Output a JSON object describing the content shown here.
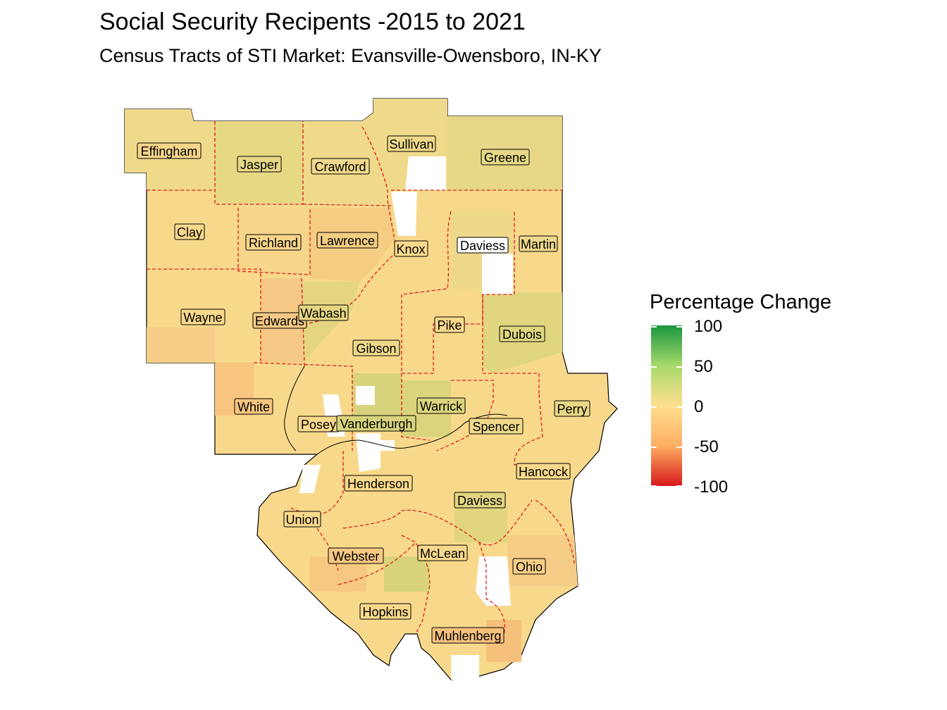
{
  "title": "Social Security Recipents -2015 to 2021",
  "subtitle": "Census Tracts of STI Market: Evansville-Owensboro, IN-KY",
  "legend": {
    "title": "Percentage Change",
    "ticks": [
      "100",
      "50",
      "0",
      "-50",
      "-100"
    ],
    "colors": {
      "high": "#1a9641",
      "mid": "#ffdf8f",
      "low": "#d7191c"
    }
  },
  "counties": [
    {
      "name": "Effingham",
      "change": 12
    },
    {
      "name": "Jasper",
      "change": 18
    },
    {
      "name": "Crawford",
      "change": 8
    },
    {
      "name": "Sullivan",
      "change": 10
    },
    {
      "name": "Greene",
      "change": 15
    },
    {
      "name": "Clay",
      "change": 2
    },
    {
      "name": "Richland",
      "change": -5
    },
    {
      "name": "Lawrence",
      "change": 5
    },
    {
      "name": "Knox",
      "change": 3
    },
    {
      "name": "Daviess",
      "change": 8
    },
    {
      "name": "Martin",
      "change": 6
    },
    {
      "name": "Wayne",
      "change": -3
    },
    {
      "name": "Edwards",
      "change": -6
    },
    {
      "name": "Wabash",
      "change": 12
    },
    {
      "name": "Pike",
      "change": 4
    },
    {
      "name": "Dubois",
      "change": 18
    },
    {
      "name": "Gibson",
      "change": 10
    },
    {
      "name": "White",
      "change": -4
    },
    {
      "name": "Posey",
      "change": 4
    },
    {
      "name": "Vanderburgh",
      "change": 20
    },
    {
      "name": "Warrick",
      "change": 22
    },
    {
      "name": "Spencer",
      "change": 6
    },
    {
      "name": "Perry",
      "change": 10
    },
    {
      "name": "Hancock",
      "change": 2
    },
    {
      "name": "Henderson",
      "change": 5
    },
    {
      "name": "Daviess",
      "change": 10
    },
    {
      "name": "Union",
      "change": 0
    },
    {
      "name": "Webster",
      "change": -8
    },
    {
      "name": "McLean",
      "change": 8
    },
    {
      "name": "Ohio",
      "change": -3
    },
    {
      "name": "Hopkins",
      "change": 2
    },
    {
      "name": "Muhlenberg",
      "change": -10
    }
  ]
}
